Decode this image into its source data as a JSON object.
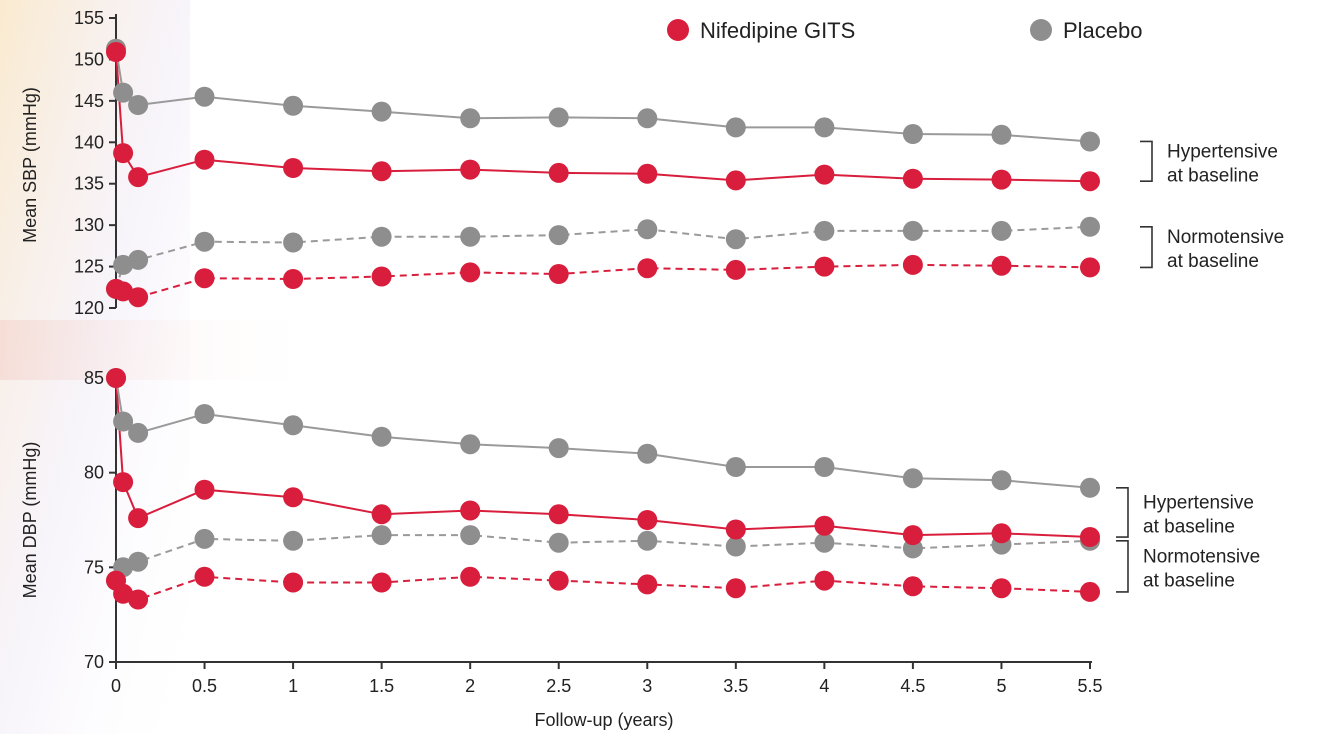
{
  "chart_data": [
    {
      "type": "line",
      "ylabel": "Mean SBP (mmHg)",
      "ylim": [
        120,
        155
      ],
      "yticks": [
        120,
        125,
        130,
        135,
        140,
        145,
        150,
        155
      ],
      "x": [
        0,
        0.04,
        0.125,
        0.5,
        1,
        1.5,
        2,
        2.5,
        3,
        3.5,
        4,
        4.5,
        5,
        5.5
      ],
      "series": [
        {
          "name": "Nifedipine GITS",
          "group": "Hypertensive at baseline",
          "values": [
            150.9,
            138.7,
            135.8,
            137.9,
            136.9,
            136.5,
            136.7,
            136.3,
            136.2,
            135.4,
            136.1,
            135.6,
            135.5,
            135.3
          ]
        },
        {
          "name": "Placebo",
          "group": "Hypertensive at baseline",
          "values": [
            151.3,
            146.0,
            144.5,
            145.5,
            144.4,
            143.7,
            142.9,
            143.0,
            142.9,
            141.8,
            141.8,
            141.0,
            140.9,
            140.1
          ]
        },
        {
          "name": "Nifedipine GITS",
          "group": "Normotensive at baseline",
          "values": [
            122.3,
            122.0,
            121.3,
            123.6,
            123.5,
            123.8,
            124.3,
            124.1,
            124.8,
            124.6,
            125.0,
            125.2,
            125.1,
            124.9
          ]
        },
        {
          "name": "Placebo",
          "group": "Normotensive at baseline",
          "values": [
            122.3,
            125.2,
            125.8,
            128.0,
            127.9,
            128.6,
            128.6,
            128.8,
            129.5,
            128.3,
            129.3,
            129.3,
            129.3,
            129.8
          ]
        }
      ],
      "brackets": [
        {
          "label_lines": [
            "Hypertensive",
            "at baseline"
          ],
          "from": 135.3,
          "to": 140.1
        },
        {
          "label_lines": [
            "Normotensive",
            "at baseline"
          ],
          "from": 124.9,
          "to": 129.8
        }
      ]
    },
    {
      "type": "line",
      "xlabel": "Follow-up (years)",
      "ylabel": "Mean DBP (mmHg)",
      "ylim": [
        70,
        85
      ],
      "yticks": [
        70,
        75,
        80,
        85
      ],
      "xticks": [
        0,
        0.5,
        1,
        1.5,
        2,
        2.5,
        3,
        3.5,
        4,
        4.5,
        5,
        5.5
      ],
      "x": [
        0,
        0.04,
        0.125,
        0.5,
        1,
        1.5,
        2,
        2.5,
        3,
        3.5,
        4,
        4.5,
        5,
        5.5
      ],
      "series": [
        {
          "name": "Nifedipine GITS",
          "group": "Hypertensive at baseline",
          "values": [
            85.0,
            79.5,
            77.6,
            79.1,
            78.7,
            77.8,
            78.0,
            77.8,
            77.5,
            77.0,
            77.2,
            76.7,
            76.8,
            76.6
          ]
        },
        {
          "name": "Placebo",
          "group": "Hypertensive at baseline",
          "values": [
            85.0,
            82.7,
            82.1,
            83.1,
            82.5,
            81.9,
            81.5,
            81.3,
            81.0,
            80.3,
            80.3,
            79.7,
            79.6,
            79.2
          ]
        },
        {
          "name": "Nifedipine GITS",
          "group": "Normotensive at baseline",
          "values": [
            74.3,
            73.6,
            73.3,
            74.5,
            74.2,
            74.2,
            74.5,
            74.3,
            74.1,
            73.9,
            74.3,
            74.0,
            73.9,
            73.7
          ]
        },
        {
          "name": "Placebo",
          "group": "Normotensive at baseline",
          "values": [
            74.3,
            75.0,
            75.3,
            76.5,
            76.4,
            76.7,
            76.7,
            76.3,
            76.4,
            76.1,
            76.3,
            76.0,
            76.2,
            76.4
          ]
        }
      ],
      "brackets": [
        {
          "label_lines": [
            "Hypertensive",
            "at baseline"
          ],
          "from": 76.6,
          "to": 79.2
        },
        {
          "label_lines": [
            "Normotensive",
            "at baseline"
          ],
          "from": 73.7,
          "to": 76.4
        }
      ]
    }
  ],
  "legend": {
    "placement": "top-right",
    "items": [
      {
        "label": "Nifedipine GITS",
        "color": "#d81e3c"
      },
      {
        "label": "Placebo",
        "color": "#8e8e8e"
      }
    ]
  },
  "colors": {
    "nifedipine": "#d81e3c",
    "placebo": "#8e8e8e",
    "placebo_line": "#9a9a9a",
    "axis": "#333333"
  }
}
